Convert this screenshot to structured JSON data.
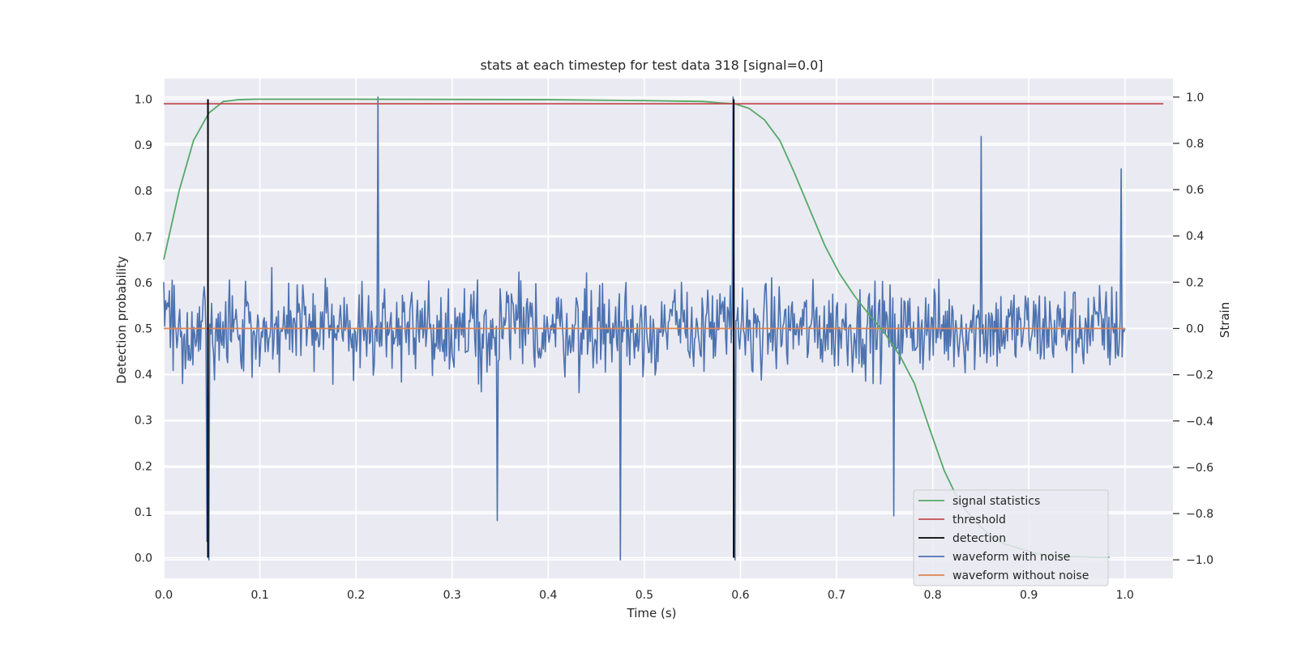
{
  "chart_data": {
    "type": "line",
    "title": "stats at each timestep for test data 318 [signal=0.0]",
    "xlabel": "Time (s)",
    "ylabel_left": "Detection probability",
    "ylabel_right": "Strain",
    "xlim": [
      0.0,
      1.05
    ],
    "ylim_left": [
      -0.045,
      1.045
    ],
    "ylim_right": [
      -1.08,
      1.08
    ],
    "x_ticks": [
      "0.0",
      "0.1",
      "0.2",
      "0.3",
      "0.4",
      "0.5",
      "0.6",
      "0.7",
      "0.8",
      "0.9",
      "1.0"
    ],
    "y_left_ticks": [
      "0.0",
      "0.1",
      "0.2",
      "0.3",
      "0.4",
      "0.5",
      "0.6",
      "0.7",
      "0.8",
      "0.9",
      "1.0"
    ],
    "y_right_ticks": [
      "−1.0",
      "−0.8",
      "−0.6",
      "−0.4",
      "−0.2",
      "0.0",
      "0.2",
      "0.4",
      "0.6",
      "0.8",
      "1.0"
    ],
    "grid": true,
    "legend_position": "lower-right",
    "colors": {
      "signal_statistics": "#55a868",
      "threshold": "#c44e52",
      "detection": "#000000",
      "waveform_with_noise": "#4c72b0",
      "waveform_without_noise": "#dd8452",
      "plot_background": "#eaeaf2"
    },
    "series": [
      {
        "name": "signal statistics",
        "axis": "left",
        "x": [
          0.0,
          0.016,
          0.031,
          0.047,
          0.062,
          0.078,
          0.094,
          0.2,
          0.4,
          0.5,
          0.562,
          0.578,
          0.594,
          0.609,
          0.625,
          0.641,
          0.656,
          0.672,
          0.688,
          0.703,
          0.719,
          0.734,
          0.75,
          0.766,
          0.781,
          0.797,
          0.812,
          0.828,
          0.844,
          0.859,
          0.875,
          0.891,
          0.906,
          0.922,
          0.938,
          0.953,
          0.969,
          0.984
        ],
        "y": [
          0.65,
          0.8,
          0.91,
          0.97,
          0.995,
          0.999,
          1.0,
          1.0,
          0.999,
          0.997,
          0.995,
          0.992,
          0.99,
          0.98,
          0.955,
          0.91,
          0.84,
          0.76,
          0.68,
          0.62,
          0.57,
          0.53,
          0.49,
          0.44,
          0.38,
          0.28,
          0.19,
          0.12,
          0.08,
          0.05,
          0.03,
          0.02,
          0.01,
          0.005,
          0.003,
          0.002,
          0.001,
          0.001
        ]
      },
      {
        "name": "threshold",
        "axis": "left",
        "x": [
          0.0,
          1.04
        ],
        "y": [
          0.99,
          0.99
        ]
      },
      {
        "name": "detection",
        "axis": "left",
        "segments": [
          {
            "x": 0.046,
            "y": [
              0.0,
              1.0
            ]
          },
          {
            "x": 0.593,
            "y": [
              0.0,
              1.0
            ]
          }
        ]
      },
      {
        "name": "waveform with noise",
        "axis": "right",
        "x_range": [
          0.0,
          1.0
        ],
        "n_points": 1024,
        "amplitude_range": [
          -1.0,
          1.0
        ],
        "notable_points": [
          {
            "x": 0.0,
            "y": 0.2
          },
          {
            "x": 0.045,
            "y": -0.92
          },
          {
            "x": 0.047,
            "y": -1.0
          },
          {
            "x": 0.223,
            "y": 1.0
          },
          {
            "x": 0.347,
            "y": -0.83
          },
          {
            "x": 0.475,
            "y": -1.0
          },
          {
            "x": 0.592,
            "y": 1.0
          },
          {
            "x": 0.594,
            "y": -1.0
          },
          {
            "x": 0.76,
            "y": -0.81
          },
          {
            "x": 0.85,
            "y": 0.83
          },
          {
            "x": 0.996,
            "y": 0.69
          },
          {
            "x": 1.0,
            "y": 0.0
          }
        ]
      },
      {
        "name": "waveform without noise",
        "axis": "right",
        "x": [
          0.0,
          1.0
        ],
        "y": [
          0.0,
          0.0
        ]
      }
    ]
  }
}
